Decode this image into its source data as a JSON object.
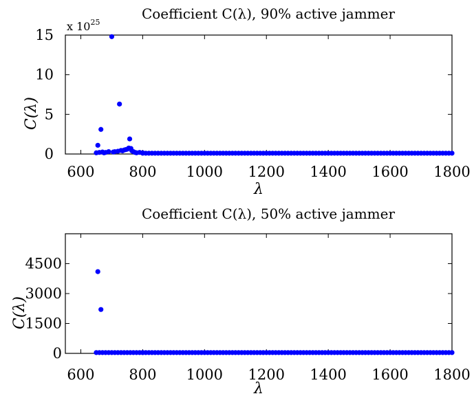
{
  "chart_data": [
    {
      "type": "scatter",
      "title": "Coefficient C(λ), 90% active jammer",
      "xlabel": "λ",
      "ylabel": "C(λ)",
      "y_multiplier_base": "x 10",
      "y_multiplier_exponent": "25",
      "xlim": [
        550,
        1800
      ],
      "ylim": [
        0,
        15
      ],
      "xticks": [
        600,
        800,
        1000,
        1200,
        1400,
        1600,
        1800
      ],
      "yticks": [
        0,
        5,
        10,
        15
      ],
      "color": "#0000ff",
      "points": [
        {
          "x": 650,
          "y": 0.15
        },
        {
          "x": 655,
          "y": 1.1
        },
        {
          "x": 660,
          "y": 0.2
        },
        {
          "x": 665,
          "y": 3.1
        },
        {
          "x": 670,
          "y": 0.25
        },
        {
          "x": 675,
          "y": 0.15
        },
        {
          "x": 680,
          "y": 0.2
        },
        {
          "x": 690,
          "y": 0.3
        },
        {
          "x": 700,
          "y": 14.8
        },
        {
          "x": 705,
          "y": 0.25
        },
        {
          "x": 710,
          "y": 0.3
        },
        {
          "x": 720,
          "y": 0.35
        },
        {
          "x": 725,
          "y": 6.3
        },
        {
          "x": 730,
          "y": 0.45
        },
        {
          "x": 735,
          "y": 0.4
        },
        {
          "x": 740,
          "y": 0.5
        },
        {
          "x": 745,
          "y": 0.55
        },
        {
          "x": 750,
          "y": 0.6
        },
        {
          "x": 755,
          "y": 0.75
        },
        {
          "x": 758,
          "y": 1.9
        },
        {
          "x": 762,
          "y": 0.7
        },
        {
          "x": 765,
          "y": 0.4
        },
        {
          "x": 770,
          "y": 0.3
        },
        {
          "x": 775,
          "y": 0.2
        },
        {
          "x": 780,
          "y": 0.15
        },
        {
          "x": 790,
          "y": 0.2
        },
        {
          "x": 800,
          "y": 0.15
        }
      ],
      "baseline": {
        "x_start": 800,
        "x_end": 1800,
        "step": 10,
        "y": 0.1
      }
    },
    {
      "type": "scatter",
      "title": "Coefficient C(λ), 50% active jammer",
      "xlabel": "λ",
      "ylabel": "C(λ)",
      "xlim": [
        550,
        1800
      ],
      "ylim": [
        0,
        6000
      ],
      "xticks": [
        600,
        800,
        1000,
        1200,
        1400,
        1600,
        1800
      ],
      "yticks": [
        0,
        1500,
        3000,
        4500
      ],
      "color": "#0000ff",
      "points": [
        {
          "x": 650,
          "y": 40
        },
        {
          "x": 655,
          "y": 4100
        },
        {
          "x": 660,
          "y": 40
        },
        {
          "x": 665,
          "y": 2200
        },
        {
          "x": 670,
          "y": 40
        },
        {
          "x": 680,
          "y": 40
        },
        {
          "x": 690,
          "y": 40
        },
        {
          "x": 700,
          "y": 40
        },
        {
          "x": 710,
          "y": 40
        },
        {
          "x": 720,
          "y": 40
        },
        {
          "x": 730,
          "y": 40
        },
        {
          "x": 740,
          "y": 40
        },
        {
          "x": 750,
          "y": 40
        },
        {
          "x": 760,
          "y": 40
        },
        {
          "x": 770,
          "y": 40
        },
        {
          "x": 780,
          "y": 40
        },
        {
          "x": 790,
          "y": 40
        },
        {
          "x": 800,
          "y": 40
        }
      ],
      "baseline": {
        "x_start": 800,
        "x_end": 1800,
        "step": 10,
        "y": 40
      }
    }
  ]
}
